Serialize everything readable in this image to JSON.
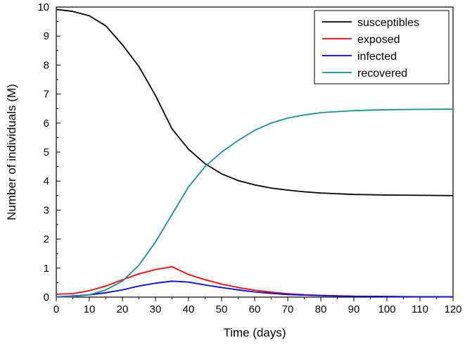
{
  "chart_data": {
    "type": "line",
    "title": "",
    "xlabel": "Time (days)",
    "ylabel": "Number of individuals (M)",
    "xlim": [
      0,
      120
    ],
    "ylim": [
      0,
      10
    ],
    "xticks": [
      "0",
      "10",
      "20",
      "30",
      "40",
      "50",
      "60",
      "70",
      "80",
      "90",
      "100",
      "110",
      "120"
    ],
    "yticks": [
      "0",
      "1",
      "2",
      "3",
      "4",
      "5",
      "6",
      "7",
      "8",
      "9",
      "10"
    ],
    "grid": false,
    "legend_position": "top-right",
    "series": [
      {
        "name": "susceptibles",
        "color": "#000000",
        "x": [
          0,
          5,
          10,
          15,
          20,
          25,
          30,
          35,
          40,
          45,
          50,
          55,
          60,
          65,
          70,
          75,
          80,
          90,
          100,
          110,
          120
        ],
        "y": [
          9.92,
          9.85,
          9.7,
          9.35,
          8.7,
          7.95,
          6.95,
          5.8,
          5.1,
          4.6,
          4.25,
          4.02,
          3.87,
          3.76,
          3.69,
          3.63,
          3.59,
          3.54,
          3.52,
          3.51,
          3.5
        ]
      },
      {
        "name": "exposed",
        "color": "#ff0000",
        "x": [
          0,
          5,
          10,
          15,
          20,
          25,
          30,
          35,
          40,
          45,
          50,
          55,
          60,
          65,
          70,
          75,
          80,
          90,
          100,
          110,
          120
        ],
        "y": [
          0.1,
          0.12,
          0.22,
          0.38,
          0.6,
          0.8,
          0.95,
          1.05,
          0.78,
          0.6,
          0.45,
          0.33,
          0.24,
          0.17,
          0.12,
          0.08,
          0.06,
          0.03,
          0.02,
          0.01,
          0.01
        ]
      },
      {
        "name": "infected",
        "color": "#0000ff",
        "x": [
          0,
          5,
          10,
          15,
          20,
          25,
          30,
          35,
          40,
          45,
          50,
          55,
          60,
          65,
          70,
          75,
          80,
          90,
          100,
          110,
          120
        ],
        "y": [
          0.01,
          0.04,
          0.08,
          0.15,
          0.25,
          0.38,
          0.48,
          0.55,
          0.52,
          0.42,
          0.33,
          0.25,
          0.18,
          0.13,
          0.09,
          0.07,
          0.05,
          0.03,
          0.02,
          0.01,
          0.01
        ]
      },
      {
        "name": "recovered",
        "color": "#1a9090",
        "x": [
          0,
          5,
          10,
          15,
          20,
          25,
          30,
          35,
          40,
          45,
          50,
          55,
          60,
          65,
          70,
          75,
          80,
          90,
          100,
          110,
          120
        ],
        "y": [
          0,
          0.02,
          0.08,
          0.25,
          0.55,
          1.1,
          1.9,
          2.85,
          3.8,
          4.5,
          5.0,
          5.4,
          5.75,
          6.0,
          6.17,
          6.28,
          6.36,
          6.43,
          6.46,
          6.47,
          6.48
        ]
      }
    ]
  }
}
